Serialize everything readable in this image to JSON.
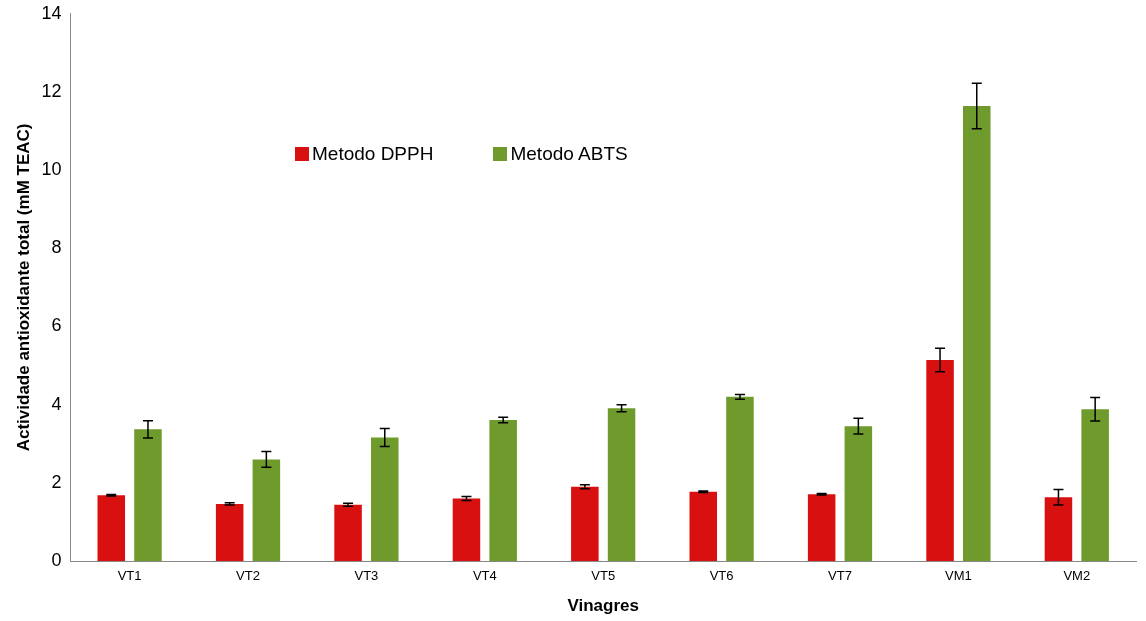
{
  "chart_data": {
    "type": "bar",
    "xlabel": "Vinagres",
    "ylabel": "Actividade antioxidante total (mM TEAC)",
    "categories": [
      "VT1",
      "VT2",
      "VT3",
      "VT4",
      "VT5",
      "VT6",
      "VT7",
      "VM1",
      "VM2"
    ],
    "series": [
      {
        "name": "Metodo DPPH",
        "color": "#d91010",
        "values": [
          1.68,
          1.46,
          1.44,
          1.6,
          1.9,
          1.77,
          1.71,
          5.14,
          1.63
        ],
        "errors": [
          0.02,
          0.03,
          0.04,
          0.05,
          0.05,
          0.02,
          0.02,
          0.3,
          0.2
        ]
      },
      {
        "name": "Metodo ABTS",
        "color": "#6f9a2c",
        "values": [
          3.37,
          2.6,
          3.16,
          3.61,
          3.91,
          4.2,
          3.45,
          11.64,
          3.88
        ],
        "errors": [
          0.22,
          0.2,
          0.23,
          0.07,
          0.09,
          0.06,
          0.2,
          0.58,
          0.3
        ]
      }
    ],
    "ylim": [
      0,
      14
    ],
    "yticks": [
      0,
      2,
      4,
      6,
      8,
      10,
      12,
      14
    ],
    "grid": false,
    "legend": "top left"
  }
}
